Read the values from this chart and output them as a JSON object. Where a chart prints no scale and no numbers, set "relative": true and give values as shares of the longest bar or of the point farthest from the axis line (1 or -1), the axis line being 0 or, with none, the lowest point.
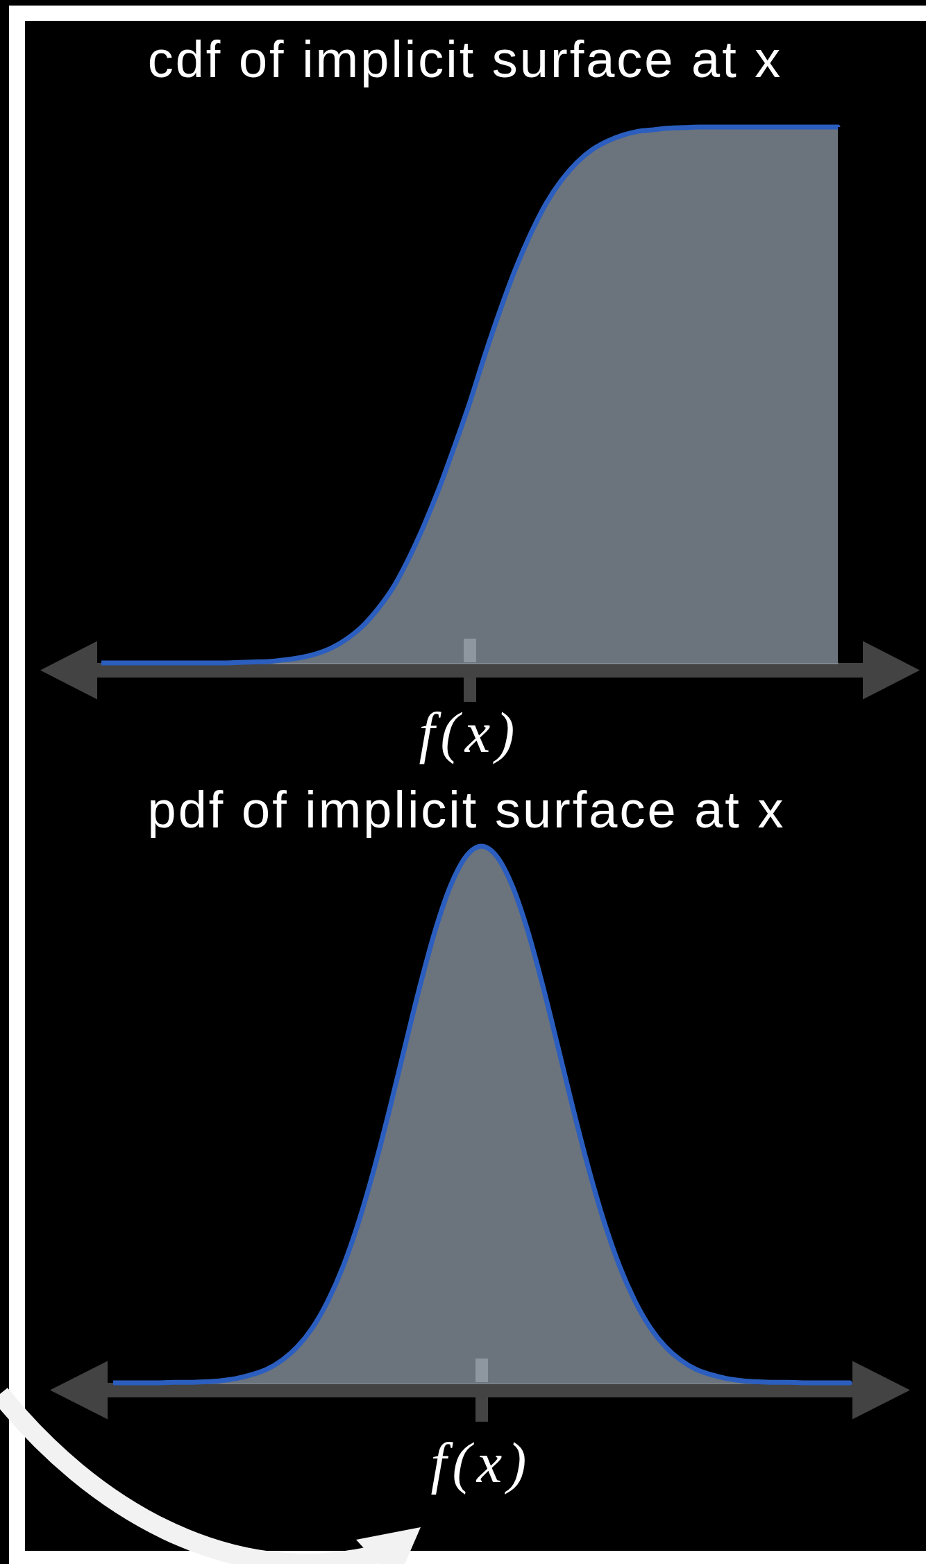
{
  "chart_data": [
    {
      "type": "area",
      "title": "cdf of implicit surface at x",
      "xlabel": "f(x)",
      "relative": true,
      "categories": [
        null,
        null,
        null,
        null,
        null,
        null,
        null,
        null,
        null,
        null,
        null,
        null,
        null,
        null,
        null,
        null,
        null,
        null,
        null,
        null,
        null,
        null,
        null,
        null,
        null,
        null,
        null,
        null,
        null,
        null,
        null,
        null,
        null,
        null,
        null,
        null,
        null,
        null,
        null,
        null,
        null,
        null,
        null,
        null,
        null,
        null,
        null,
        null,
        null
      ],
      "series": [
        {
          "type": "area",
          "color": "#6b737d",
          "values": [
            0,
            0,
            0,
            0,
            0,
            0,
            0,
            0,
            0,
            0.001,
            0.002,
            0.003,
            0.006,
            0.01,
            0.017,
            0.028,
            0.045,
            0.068,
            0.1,
            0.14,
            0.193,
            0.255,
            0.325,
            0.403,
            0.485,
            0.575,
            0.659,
            0.736,
            0.802,
            0.858,
            0.901,
            0.934,
            0.958,
            0.974,
            0.985,
            0.992,
            0.995,
            0.998,
            0.999,
            1,
            1,
            1,
            1,
            1,
            1,
            1,
            1,
            1,
            1
          ]
        }
      ]
    },
    {
      "type": "area",
      "title": "pdf of implicit surface at x",
      "xlabel": "f(x)",
      "relative": true,
      "categories": [
        null,
        null,
        null,
        null,
        null,
        null,
        null,
        null,
        null,
        null,
        null,
        null,
        null,
        null,
        null,
        null,
        null,
        null,
        null,
        null,
        null,
        null,
        null,
        null,
        null,
        null,
        null,
        null,
        null,
        null,
        null,
        null,
        null,
        null,
        null,
        null,
        null,
        null,
        null,
        null,
        null,
        null,
        null,
        null,
        null,
        null,
        null,
        null,
        null
      ],
      "series": [
        {
          "type": "area",
          "color": "#6b737d",
          "values": [
            0,
            0,
            0,
            0,
            0.001,
            0.001,
            0.002,
            0.004,
            0.008,
            0.015,
            0.025,
            0.042,
            0.067,
            0.103,
            0.153,
            0.218,
            0.3,
            0.398,
            0.508,
            0.625,
            0.74,
            0.844,
            0.927,
            0.981,
            1,
            0.981,
            0.927,
            0.844,
            0.74,
            0.625,
            0.508,
            0.398,
            0.3,
            0.218,
            0.153,
            0.103,
            0.067,
            0.042,
            0.025,
            0.015,
            0.008,
            0.004,
            0.002,
            0.001,
            0.001,
            0,
            0,
            0,
            0
          ]
        }
      ]
    }
  ]
}
